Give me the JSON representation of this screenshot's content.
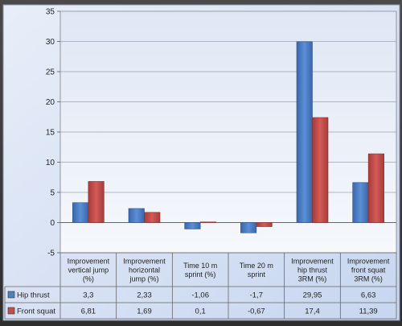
{
  "chart_data": {
    "type": "bar",
    "title": "",
    "xlabel": "",
    "ylabel": "",
    "ylim": [
      -5,
      35
    ],
    "yticks": [
      -5,
      0,
      5,
      10,
      15,
      20,
      25,
      30,
      35
    ],
    "grid": true,
    "legend": "data-table-left",
    "categories": [
      "Improvement vertical jump (%)",
      "Improvement horizontal jump (%)",
      "Time 10 m sprint (%)",
      "Time 20 m sprint",
      "Improvement hip thrust 3RM (%)",
      "Improvement front squat 3RM (%)"
    ],
    "category_lines": [
      [
        "Improvement",
        "vertical jump",
        "(%)"
      ],
      [
        "Improvement",
        "horizontal",
        "jump (%)"
      ],
      [
        "Time 10 m",
        "sprint (%)"
      ],
      [
        "Time 20 m",
        "sprint"
      ],
      [
        "Improvement",
        "hip thrust",
        "3RM (%)"
      ],
      [
        "Improvement",
        "front squat",
        "3RM (%)"
      ]
    ],
    "series": [
      {
        "name": "Hip thrust",
        "values": [
          3.3,
          2.33,
          -1.06,
          -1.7,
          29.95,
          6.63
        ],
        "labels": [
          "3,3",
          "2,33",
          "-1,06",
          "-1,7",
          "29,95",
          "6,63"
        ],
        "color": "#4f81bd"
      },
      {
        "name": "Front squat",
        "values": [
          6.81,
          1.69,
          0.1,
          -0.67,
          17.4,
          11.39
        ],
        "labels": [
          "6,81",
          "1,69",
          "0,1",
          "-0,67",
          "17,4",
          "11,39"
        ],
        "color": "#c0504d"
      }
    ]
  }
}
